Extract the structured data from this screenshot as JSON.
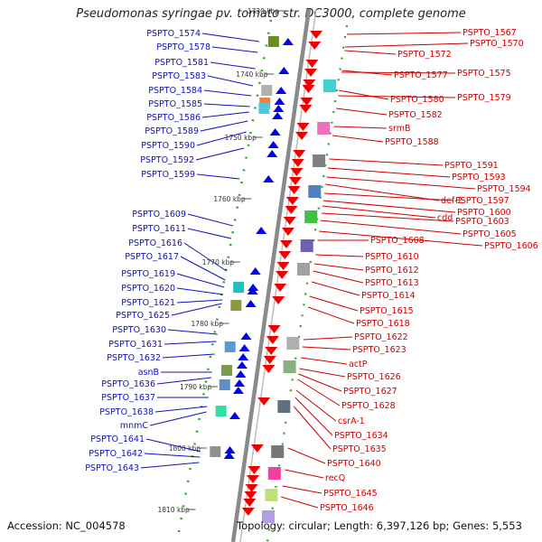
{
  "title": "Pseudomonas syringae pv. tomato str. DC3000, complete genome",
  "accession_label": "Accession:",
  "accession": "NC_004578",
  "summary": "Topology: circular; Length: 6,397,126 bp; Genes: 5,553",
  "colors": {
    "left_label": "#1010c0",
    "right_label": "#cc0000",
    "backbone": "#909090",
    "minus_strand": "#0000ee",
    "plus_strand": "#ee0000",
    "tick_dots": "#22aa22"
  },
  "scale_ticks": [
    "1730 kbp",
    "1740 kbp",
    "1750 kbp",
    "1760 kbp",
    "1770 kbp",
    "1780 kbp",
    "1790 kbp",
    "1800 kbp",
    "1810 kbp"
  ],
  "left_genes": [
    "PSPTO_1574",
    "PSPTO_1578",
    "PSPTO_1581",
    "PSPTO_1583",
    "PSPTO_1584",
    "PSPTO_1585",
    "PSPTO_1586",
    "PSPTO_1589",
    "PSPTO_1590",
    "PSPTO_1592",
    "PSPTO_1599",
    "PSPTO_1609",
    "PSPTO_1611",
    "PSPTO_1616",
    "PSPTO_1617",
    "PSPTO_1619",
    "PSPTO_1620",
    "PSPTO_1621",
    "PSPTO_1625",
    "PSPTO_1630",
    "PSPTO_1631",
    "PSPTO_1632",
    "asnB",
    "PSPTO_1636",
    "PSPTO_1637",
    "PSPTO_1638",
    "mnmC",
    "PSPTO_1641",
    "PSPTO_1642",
    "PSPTO_1643"
  ],
  "right_genes": [
    "PSPTO_1567",
    "PSPTO_1570",
    "PSPTO_1572",
    "PSPTO_1577",
    "PSPTO_1575",
    "PSPTO_1580",
    "PSPTO_1579",
    "PSPTO_1582",
    "srmB",
    "PSPTO_1588",
    "PSPTO_1591",
    "PSPTO_1593",
    "PSPTO_1594",
    "def-2",
    "PSPTO_1597",
    "PSPTO_1600",
    "cdd",
    "PSPTO_1603",
    "PSPTO_1605",
    "PSPTO_1608",
    "PSPTO_1606",
    "PSPTO_1610",
    "PSPTO_1612",
    "PSPTO_1613",
    "PSPTO_1614",
    "PSPTO_1615",
    "PSPTO_1618",
    "PSPTO_1622",
    "PSPTO_1623",
    "actP",
    "PSPTO_1626",
    "PSPTO_1627",
    "PSPTO_1628",
    "csrA-1",
    "PSPTO_1634",
    "PSPTO_1635",
    "PSPTO_1640",
    "recQ",
    "PSPTO_1645",
    "PSPTO_1646"
  ]
}
